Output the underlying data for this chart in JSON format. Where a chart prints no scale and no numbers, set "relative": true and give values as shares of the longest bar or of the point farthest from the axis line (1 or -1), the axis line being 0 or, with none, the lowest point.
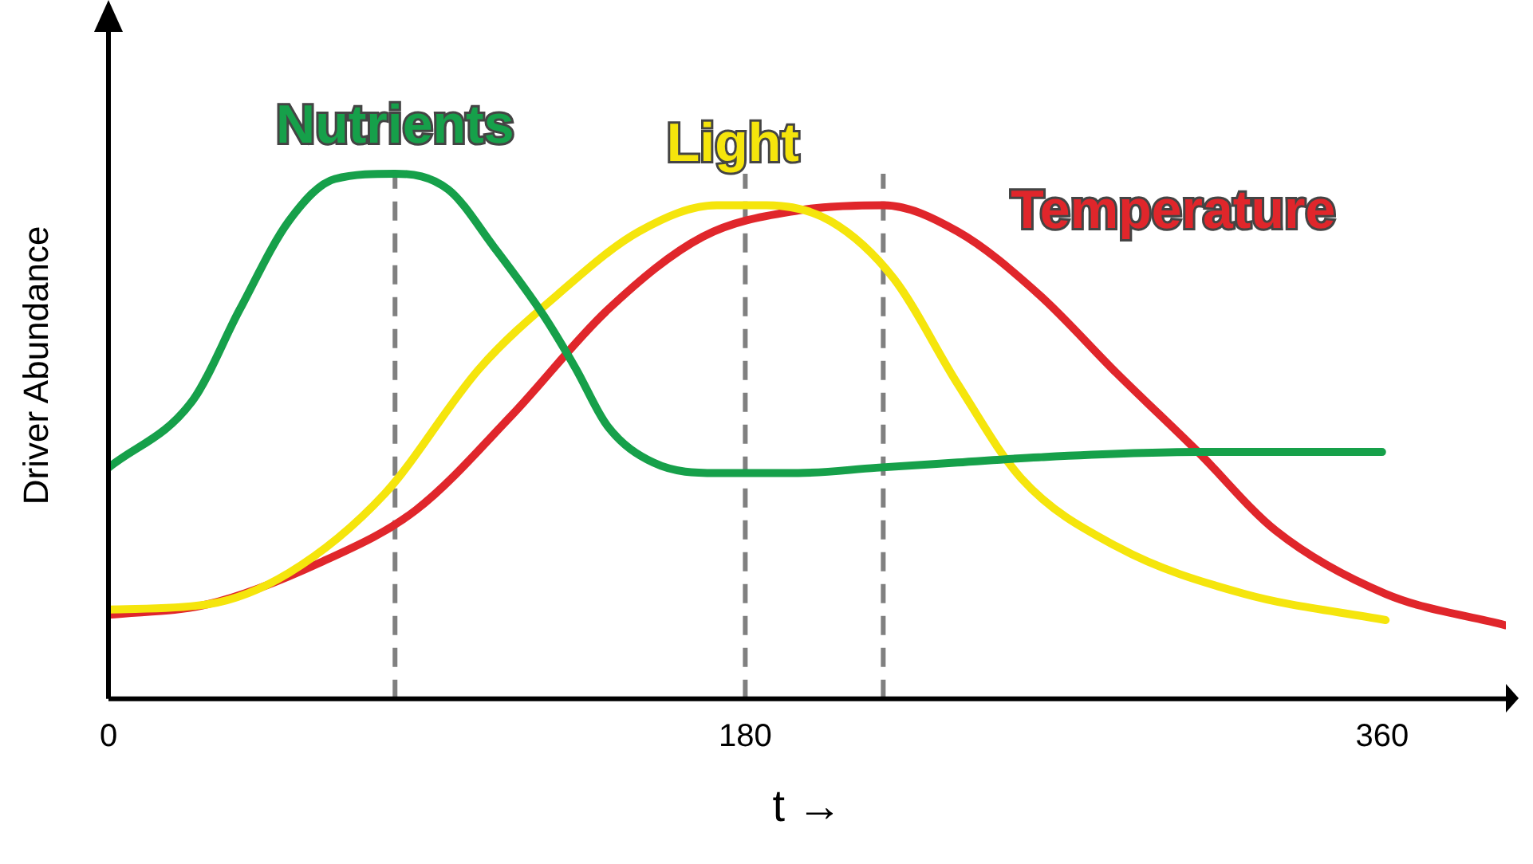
{
  "chart_data": {
    "type": "line",
    "relative": true,
    "xlabel": "t →",
    "ylabel": "Driver Abundance",
    "xlim": [
      0,
      395
    ],
    "xticks": [
      0,
      180,
      360
    ],
    "grid": false,
    "legend": false,
    "marker": "none",
    "line_style": "solid",
    "series": [
      {
        "name": "Nutrients",
        "color": "#16a04a",
        "x": [
          0,
          24,
          37,
          51,
          64,
          81,
          96,
          109,
          123,
          132,
          141,
          154,
          172,
          195,
          217,
          240,
          263,
          308,
          360
        ],
        "values": [
          0.44,
          0.57,
          0.74,
          0.91,
          0.99,
          1,
          0.97,
          0.86,
          0.73,
          0.63,
          0.52,
          0.45,
          0.43,
          0.43,
          0.44,
          0.45,
          0.46,
          0.47,
          0.47
        ]
      },
      {
        "name": "Light",
        "color": "#f5e50c",
        "x": [
          0,
          28,
          51,
          78,
          105,
          127,
          150,
          172,
          186,
          204,
          222,
          240,
          258,
          285,
          321,
          361
        ],
        "values": [
          0.17,
          0.18,
          0.24,
          0.39,
          0.63,
          0.77,
          0.89,
          0.94,
          0.94,
          0.91,
          0.8,
          0.6,
          0.42,
          0.29,
          0.2,
          0.15
        ]
      },
      {
        "name": "Temperature",
        "color": "#e0262b",
        "x": [
          0,
          28,
          60,
          87,
          114,
          141,
          168,
          195,
          219,
          240,
          263,
          285,
          308,
          330,
          361,
          395
        ],
        "values": [
          0.16,
          0.18,
          0.26,
          0.36,
          0.54,
          0.74,
          0.88,
          0.93,
          0.94,
          0.89,
          0.77,
          0.62,
          0.47,
          0.32,
          0.2,
          0.14
        ]
      }
    ],
    "ref_lines": [
      {
        "axis": "x",
        "value": 81,
        "color": "#808080",
        "line_style": "dashed"
      },
      {
        "axis": "x",
        "value": 180,
        "color": "#808080",
        "line_style": "dashed"
      },
      {
        "axis": "x",
        "value": 219,
        "color": "#808080",
        "line_style": "dashed"
      }
    ]
  }
}
